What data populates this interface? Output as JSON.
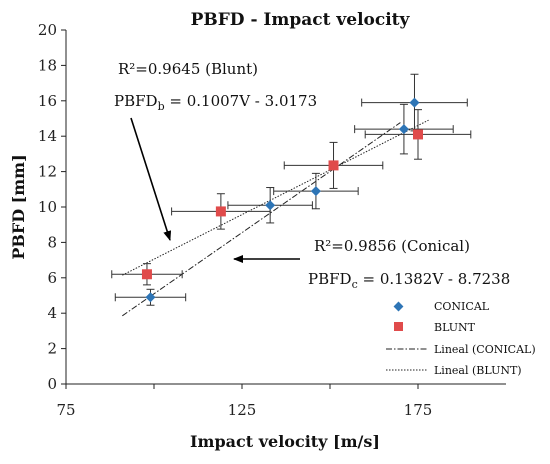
{
  "chart_data": {
    "type": "scatter",
    "title": "PBFD - Impact velocity",
    "xlabel": "Impact velocity [m/s]",
    "ylabel": "PBFD [mm]",
    "xlim": [
      75,
      200
    ],
    "ylim": [
      0,
      20
    ],
    "xticks": [
      "75",
      "125",
      "175"
    ],
    "yticks": [
      "0",
      "2",
      "4",
      "6",
      "8",
      "10",
      "12",
      "14",
      "16",
      "18",
      "20"
    ],
    "legend_position": "bottom-right",
    "series": [
      {
        "name": "CONICAL",
        "marker": "diamond",
        "color": "#2e75b6",
        "points": [
          {
            "x": 99,
            "y": 4.9,
            "xerr": 10,
            "yerr": 0.45
          },
          {
            "x": 133,
            "y": 10.1,
            "xerr": 12,
            "yerr": 1.0
          },
          {
            "x": 146,
            "y": 10.9,
            "xerr": 12,
            "yerr": 1.0
          },
          {
            "x": 171,
            "y": 14.4,
            "xerr": 14,
            "yerr": 1.4
          },
          {
            "x": 174,
            "y": 15.9,
            "xerr": 15,
            "yerr": 1.6
          }
        ]
      },
      {
        "name": "BLUNT",
        "marker": "square",
        "color": "#e04b4b",
        "points": [
          {
            "x": 98,
            "y": 6.2,
            "xerr": 10,
            "yerr": 0.6
          },
          {
            "x": 119,
            "y": 9.75,
            "xerr": 14,
            "yerr": 1.0
          },
          {
            "x": 151,
            "y": 12.35,
            "xerr": 14,
            "yerr": 1.3
          },
          {
            "x": 175,
            "y": 14.1,
            "xerr": 15,
            "yerr": 1.4
          }
        ]
      }
    ],
    "trendlines": [
      {
        "name": "Lineal (CONICAL)",
        "style": "dashdot",
        "slope": 0.1382,
        "intercept": -8.7238,
        "x_range": [
          91,
          170
        ]
      },
      {
        "name": "Lineal (BLUNT)",
        "style": "dotted",
        "slope": 0.1007,
        "intercept": -3.0173,
        "x_range": [
          91,
          178
        ]
      }
    ],
    "annotations": {
      "blunt_r2": "R²=0.9645 (Blunt)",
      "blunt_eq_main": "PBFD",
      "blunt_eq_sub": "b",
      "blunt_eq_rest": " = 0.1007V - 3.0173",
      "conical_r2": "R²=0.9856 (Conical)",
      "conical_eq_main": "PBFD",
      "conical_eq_sub": "c",
      "conical_eq_rest": " = 0.1382V - 8.7238"
    }
  }
}
